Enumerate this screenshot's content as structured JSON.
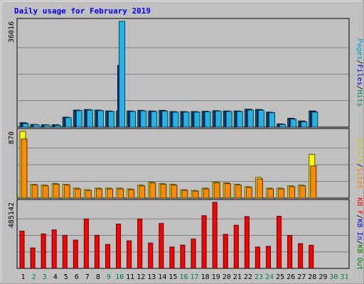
{
  "chart_data": {
    "type": "bar",
    "title": "Daily usage for February 2019",
    "categories": [
      "1",
      "2",
      "3",
      "4",
      "5",
      "6",
      "7",
      "8",
      "9",
      "10",
      "11",
      "12",
      "13",
      "14",
      "15",
      "16",
      "17",
      "18",
      "19",
      "20",
      "21",
      "22",
      "23",
      "24",
      "25",
      "26",
      "27",
      "28",
      "29",
      "30",
      "31"
    ],
    "weekend_days": [
      "2",
      "3",
      "9",
      "10",
      "16",
      "17",
      "23",
      "24",
      "30",
      "31"
    ],
    "panels": [
      {
        "max_label": "36016",
        "ymax": 36016,
        "legend": [
          {
            "text": "Pages",
            "color": "#00a0c8"
          },
          {
            "text": "/",
            "color": "#000000"
          },
          {
            "text": "Files",
            "color": "#0000c0"
          },
          {
            "text": "/",
            "color": "#000000"
          },
          {
            "text": "Hits",
            "color": "#008060"
          }
        ],
        "series": [
          {
            "name": "Hits",
            "color": "#00806c",
            "values": [
              1500,
              900,
              800,
              800,
              3400,
              5800,
              6000,
              5800,
              5500,
              5500,
              5500,
              5700,
              5500,
              5700,
              5300,
              5300,
              5300,
              5400,
              5600,
              5500,
              5500,
              6100,
              6000,
              5100,
              1100,
              3000,
              2100,
              5500,
              0,
              0,
              0
            ]
          },
          {
            "name": "Files",
            "color": "#1a1aa0",
            "values": [
              1400,
              850,
              750,
              750,
              3300,
              5700,
              5900,
              5700,
              5400,
              21000,
              5400,
              5600,
              5400,
              5600,
              5200,
              5200,
              5200,
              5300,
              5500,
              5400,
              5400,
              6000,
              5900,
              5000,
              1000,
              2900,
              2000,
              5400,
              0,
              0,
              0
            ]
          },
          {
            "name": "Pages",
            "color": "#22b4e6",
            "values": [
              1200,
              800,
              700,
              600,
              3200,
              5600,
              5800,
              5600,
              5300,
              36016,
              5300,
              5500,
              5300,
              5400,
              5100,
              5100,
              5100,
              5200,
              5400,
              5300,
              5300,
              5800,
              5700,
              4900,
              900,
              2700,
              1800,
              5100,
              0,
              0,
              0
            ]
          }
        ]
      },
      {
        "max_label": "870",
        "ymax": 870,
        "legend": [
          {
            "text": "Visits",
            "color": "#c8c800"
          },
          {
            "text": "/",
            "color": "#000000"
          },
          {
            "text": "Sites",
            "color": "#ff8000"
          }
        ],
        "series": [
          {
            "name": "Visits",
            "color": "#ffff00",
            "values": [
              870,
              180,
              170,
              190,
              180,
              130,
              110,
              130,
              130,
              130,
              120,
              170,
              210,
              190,
              180,
              110,
              100,
              130,
              210,
              200,
              180,
              150,
              270,
              130,
              130,
              160,
              170,
              570,
              0,
              0,
              0
            ]
          },
          {
            "name": "Sites",
            "color": "#ff8c00",
            "values": [
              770,
              170,
              160,
              180,
              170,
              120,
              100,
              120,
              120,
              120,
              110,
              160,
              200,
              180,
              170,
              100,
              90,
              120,
              200,
              190,
              170,
              140,
              250,
              120,
              120,
              150,
              160,
              420,
              0,
              0,
              0
            ]
          }
        ]
      },
      {
        "max_label": "485142",
        "ymax": 485142,
        "legend": [
          {
            "text": "KB F",
            "color": "#ff0000"
          },
          {
            "text": "/",
            "color": "#000000"
          },
          {
            "text": "KB In",
            "color": "#0000ff"
          },
          {
            "text": "/",
            "color": "#000000"
          },
          {
            "text": "KB Out",
            "color": "#008000"
          }
        ],
        "series": [
          {
            "name": "KB F",
            "color": "#ff0000",
            "values": [
              274000,
              150000,
              253000,
              283000,
              243000,
              208000,
              363000,
              243000,
              176000,
              326000,
              202000,
              363000,
              186000,
              330000,
              157000,
              171000,
              215000,
              387000,
              485142,
              250000,
              317000,
              381000,
              157000,
              162000,
              383000,
              242000,
              182000,
              170000,
              0,
              0,
              0
            ]
          }
        ]
      }
    ]
  }
}
